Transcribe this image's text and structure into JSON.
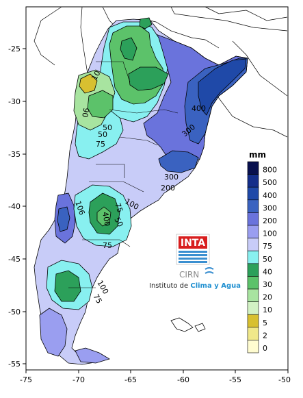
{
  "map": {
    "x_ticks": [
      "-75",
      "-70",
      "-65",
      "-60",
      "-55",
      "-50"
    ],
    "y_ticks": [
      "-25",
      "-30",
      "-35",
      "-40",
      "-45",
      "-50",
      "-55"
    ],
    "contour_labels": [
      "10",
      "50",
      "06",
      "50",
      "75",
      "400",
      "300",
      "300",
      "200",
      "100",
      "106",
      "75",
      "50",
      "400",
      "75",
      "75",
      "100"
    ]
  },
  "legend": {
    "unit": "mm",
    "levels": [
      {
        "label": "800",
        "color": "#08104e"
      },
      {
        "label": "500",
        "color": "#142e8a"
      },
      {
        "label": "400",
        "color": "#1f49a8"
      },
      {
        "label": "300",
        "color": "#3a62c0"
      },
      {
        "label": "200",
        "color": "#6a73dc"
      },
      {
        "label": "100",
        "color": "#9a9ef0"
      },
      {
        "label": "75",
        "color": "#c8ccf8"
      },
      {
        "label": "50",
        "color": "#88f0f0"
      },
      {
        "label": "40",
        "color": "#2ca05a"
      },
      {
        "label": "30",
        "color": "#5cc26a"
      },
      {
        "label": "20",
        "color": "#a8e4a0"
      },
      {
        "label": "10",
        "color": "#d2f2c4"
      },
      {
        "label": "5",
        "color": "#d8c030"
      },
      {
        "label": "2",
        "color": "#f0e88a"
      },
      {
        "label": "0",
        "color": "#fffcd0"
      }
    ]
  },
  "logo": {
    "inta": "INTA",
    "cirn": "CIRN",
    "institute_prefix": "Instituto de ",
    "institute_highlight": "Clima y Agua"
  }
}
